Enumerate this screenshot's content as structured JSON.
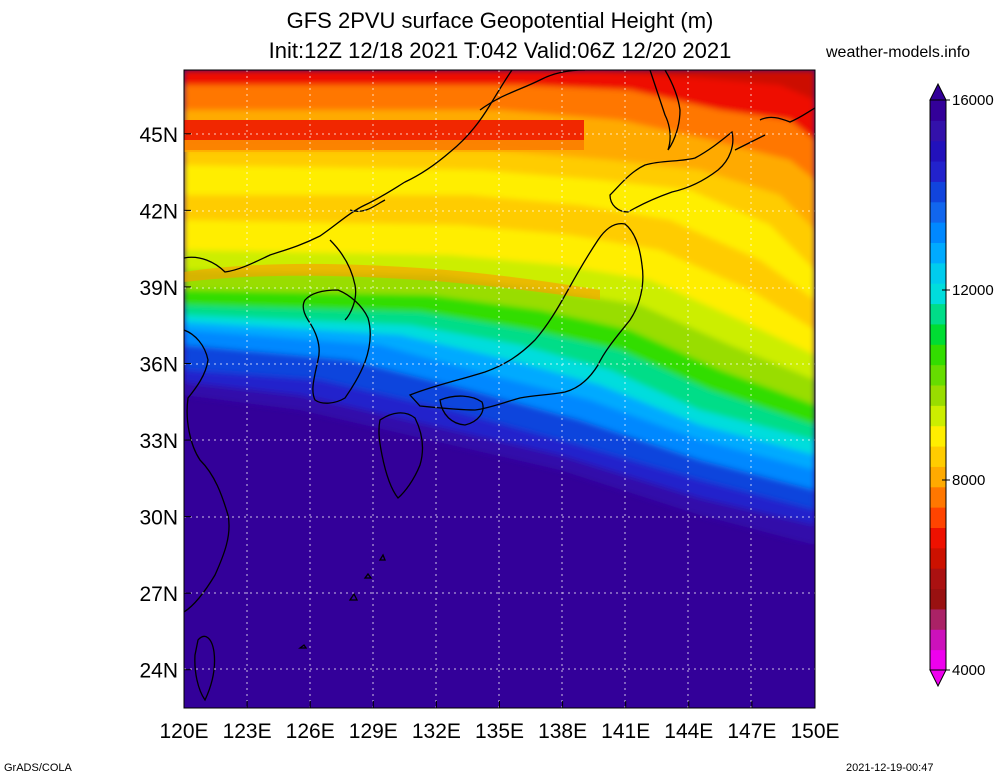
{
  "title": {
    "line1": "GFS 2PVU surface Geopotential Height (m)",
    "line2": "Init:12Z 12/18 2021 T:042 Valid:06Z 12/20 2021"
  },
  "site": "weather-models.info",
  "footer": {
    "left": "GrADS/COLA",
    "right": "2021-12-19-00:47"
  },
  "map": {
    "lon_range": [
      120,
      150
    ],
    "lat_range": [
      22.5,
      47.5
    ],
    "lat_labels": [
      {
        "value": 45,
        "text": "45N"
      },
      {
        "value": 42,
        "text": "42N"
      },
      {
        "value": 39,
        "text": "39N"
      },
      {
        "value": 36,
        "text": "36N"
      },
      {
        "value": 33,
        "text": "33N"
      },
      {
        "value": 30,
        "text": "30N"
      },
      {
        "value": 27,
        "text": "27N"
      },
      {
        "value": 24,
        "text": "24N"
      }
    ],
    "lon_labels": [
      {
        "value": 120,
        "text": "120E"
      },
      {
        "value": 123,
        "text": "123E"
      },
      {
        "value": 126,
        "text": "126E"
      },
      {
        "value": 129,
        "text": "129E"
      },
      {
        "value": 132,
        "text": "132E"
      },
      {
        "value": 135,
        "text": "135E"
      },
      {
        "value": 138,
        "text": "138E"
      },
      {
        "value": 141,
        "text": "141E"
      },
      {
        "value": 144,
        "text": "144E"
      },
      {
        "value": 147,
        "text": "147E"
      },
      {
        "value": 150,
        "text": "150E"
      }
    ]
  },
  "colorbar": {
    "min": 4000,
    "max": 16000,
    "labels": [
      {
        "value": 16000,
        "text": "16000"
      },
      {
        "value": 12000,
        "text": "12000"
      },
      {
        "value": 8000,
        "text": "8000"
      },
      {
        "value": 4000,
        "text": "4000"
      }
    ],
    "colors": [
      "#ee00ee",
      "#cc11bb",
      "#aa2266",
      "#991111",
      "#aa1111",
      "#cc1100",
      "#ee1100",
      "#ff4400",
      "#ff7700",
      "#ffaa00",
      "#ffcc00",
      "#ffee00",
      "#ccee00",
      "#99dd00",
      "#66dd00",
      "#33dd00",
      "#00dd33",
      "#00dd88",
      "#00dddd",
      "#00ccee",
      "#00aaff",
      "#0088ff",
      "#1166ee",
      "#1144dd",
      "#2222cc",
      "#2211bb",
      "#3311aa",
      "#330099"
    ]
  }
}
